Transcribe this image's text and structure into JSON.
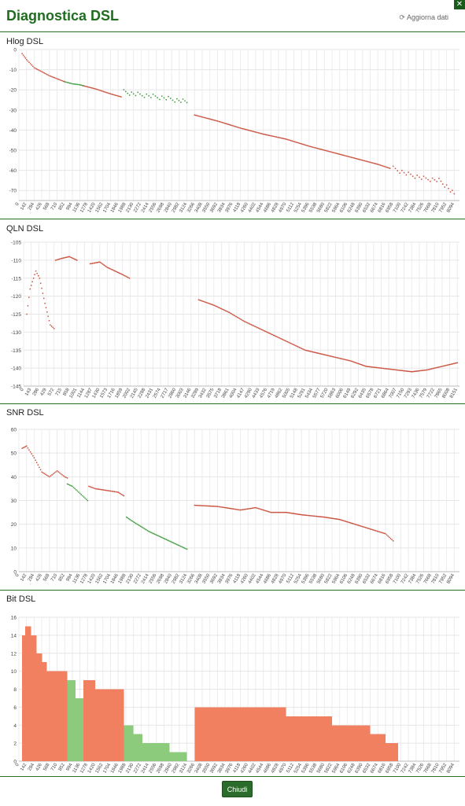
{
  "header": {
    "title": "Diagnostica DSL",
    "refresh_label": "Aggiorna dati",
    "refresh_icon": "refresh-icon",
    "close_icon": "close-icon"
  },
  "footer": {
    "close_label": "Chiudi"
  },
  "colors": {
    "accent": "#1f6e1f",
    "red_series": "#c8503c",
    "green_series": "#3a9a3a",
    "bit_red": "#f08060",
    "bit_green": "#8cca7c"
  },
  "chart_data": [
    {
      "type": "scatter",
      "title": "Hlog DSL",
      "ylim": [
        -75,
        0
      ],
      "yticks": [
        0,
        -10,
        -20,
        -30,
        -40,
        -50,
        -60,
        -70
      ],
      "xlim": [
        0,
        8192
      ],
      "xticks": [
        0,
        142,
        284,
        426,
        568,
        710,
        852,
        994,
        1136,
        1278,
        1420,
        1562,
        1704,
        1846,
        1988,
        2130,
        2272,
        2414,
        2556,
        2698,
        2840,
        2982,
        3124,
        3266,
        3408,
        3550,
        3692,
        3834,
        3976,
        4118,
        4260,
        4402,
        4544,
        4686,
        4828,
        4970,
        5112,
        5254,
        5396,
        5538,
        5680,
        5822,
        5964,
        6106,
        6248,
        6390,
        6532,
        6674,
        6816,
        6958,
        7100,
        7242,
        7384,
        7526,
        7668,
        7810,
        7952,
        8094
      ],
      "series": [
        {
          "color": "red",
          "points": [
            [
              60,
              -2
            ],
            [
              142,
              -5
            ],
            [
              284,
              -9
            ],
            [
              426,
              -11
            ],
            [
              568,
              -13
            ],
            [
              710,
              -14.5
            ],
            [
              852,
              -16
            ]
          ]
        },
        {
          "color": "green",
          "points": [
            [
              852,
              -16
            ],
            [
              994,
              -17
            ],
            [
              1136,
              -17.5
            ],
            [
              1200,
              -18
            ]
          ]
        },
        {
          "color": "red",
          "points": [
            [
              1200,
              -18
            ],
            [
              1420,
              -19.5
            ],
            [
              1704,
              -22
            ],
            [
              1900,
              -23.5
            ]
          ]
        },
        {
          "color": "green",
          "points": [
            [
              1950,
              -21
            ],
            [
              2130,
              -22
            ],
            [
              2414,
              -23
            ],
            [
              2698,
              -24
            ],
            [
              2900,
              -25
            ],
            [
              3124,
              -26
            ]
          ],
          "scatter": true
        },
        {
          "color": "red",
          "points": [
            [
              3266,
              -32.5
            ],
            [
              3692,
              -35.5
            ],
            [
              4118,
              -39
            ],
            [
              4544,
              -42
            ],
            [
              4970,
              -44.5
            ],
            [
              5396,
              -48
            ],
            [
              5822,
              -51
            ],
            [
              6248,
              -54
            ],
            [
              6674,
              -57
            ],
            [
              6900,
              -59
            ]
          ]
        },
        {
          "color": "red",
          "points": [
            [
              6958,
              -59
            ],
            [
              7242,
              -62
            ],
            [
              7526,
              -64
            ],
            [
              7810,
              -65
            ],
            [
              7952,
              -68
            ],
            [
              8094,
              -72
            ]
          ],
          "scatter": true
        }
      ]
    },
    {
      "type": "scatter",
      "title": "QLN DSL",
      "ylim": [
        -145,
        -105
      ],
      "yticks": [
        -105,
        -110,
        -115,
        -120,
        -125,
        -130,
        -135,
        -140,
        -145
      ],
      "xlim": [
        0,
        8192
      ],
      "xticks": [
        0,
        143,
        286,
        429,
        572,
        715,
        858,
        1001,
        1144,
        1287,
        1430,
        1573,
        1716,
        1859,
        2002,
        2145,
        2288,
        2431,
        2574,
        2717,
        2860,
        3003,
        3146,
        3289,
        3432,
        3575,
        3718,
        3861,
        4004,
        4147,
        4290,
        4433,
        4576,
        4719,
        4862,
        5005,
        5148,
        5291,
        5434,
        5577,
        5720,
        5863,
        6006,
        6149,
        6292,
        6435,
        6578,
        6721,
        6864,
        7007,
        7150,
        7293,
        7436,
        7579,
        7722,
        7865,
        8008,
        8151
      ],
      "series": [
        {
          "color": "red",
          "points": [
            [
              60,
              -125
            ],
            [
              120,
              -118
            ],
            [
              230,
              -113
            ],
            [
              300,
              -115
            ],
            [
              400,
              -122
            ],
            [
              500,
              -128
            ],
            [
              572,
              -129
            ]
          ]
        },
        {
          "color": "red",
          "points": [
            [
              600,
              -110
            ],
            [
              715,
              -109.5
            ],
            [
              858,
              -109
            ],
            [
              1001,
              -110
            ]
          ]
        },
        {
          "color": "red",
          "points": [
            [
              1250,
              -111
            ],
            [
              1430,
              -110.5
            ],
            [
              1573,
              -112
            ],
            [
              1716,
              -113
            ],
            [
              1859,
              -114
            ],
            [
              1988,
              -115
            ]
          ]
        },
        {
          "color": "red",
          "points": [
            [
              3289,
              -121
            ],
            [
              3575,
              -122.5
            ],
            [
              3861,
              -124.5
            ],
            [
              4147,
              -127
            ],
            [
              4433,
              -129
            ],
            [
              4719,
              -131
            ],
            [
              5005,
              -133
            ],
            [
              5291,
              -135
            ],
            [
              5577,
              -136
            ],
            [
              5863,
              -137
            ],
            [
              6149,
              -138
            ],
            [
              6435,
              -139.5
            ],
            [
              6721,
              -140
            ],
            [
              7007,
              -140.5
            ],
            [
              7293,
              -141
            ],
            [
              7579,
              -140.5
            ],
            [
              7865,
              -139.5
            ],
            [
              8151,
              -138.5
            ]
          ]
        }
      ]
    },
    {
      "type": "scatter",
      "title": "SNR DSL",
      "ylim": [
        0,
        60
      ],
      "yticks": [
        60,
        50,
        40,
        30,
        20,
        10,
        0
      ],
      "xlim": [
        0,
        8192
      ],
      "xticks": [
        0,
        142,
        284,
        426,
        568,
        710,
        852,
        994,
        1136,
        1278,
        1420,
        1562,
        1704,
        1846,
        1988,
        2130,
        2272,
        2414,
        2556,
        2698,
        2840,
        2982,
        3124,
        3266,
        3408,
        3550,
        3692,
        3834,
        3976,
        4118,
        4260,
        4402,
        4544,
        4686,
        4828,
        4970,
        5112,
        5254,
        5396,
        5538,
        5680,
        5822,
        5964,
        6106,
        6248,
        6390,
        6532,
        6674,
        6816,
        6958,
        7100,
        7242,
        7384,
        7526,
        7668,
        7810,
        7952,
        8094
      ],
      "series": [
        {
          "color": "red",
          "points": [
            [
              60,
              52
            ],
            [
              142,
              53
            ],
            [
              284,
              48
            ],
            [
              426,
              42
            ],
            [
              568,
              40
            ],
            [
              710,
              42.5
            ],
            [
              852,
              40
            ],
            [
              900,
              39.5
            ]
          ]
        },
        {
          "color": "green",
          "points": [
            [
              900,
              37
            ],
            [
              994,
              36
            ],
            [
              1136,
              33
            ],
            [
              1278,
              30
            ]
          ]
        },
        {
          "color": "red",
          "points": [
            [
              1300,
              36
            ],
            [
              1420,
              35
            ],
            [
              1704,
              34
            ],
            [
              1846,
              33.5
            ],
            [
              1950,
              32
            ]
          ]
        },
        {
          "color": "green",
          "points": [
            [
              2000,
              23
            ],
            [
              2130,
              21
            ],
            [
              2414,
              17
            ],
            [
              2698,
              14
            ],
            [
              2982,
              11
            ],
            [
              3124,
              9.5
            ]
          ]
        },
        {
          "color": "red",
          "points": [
            [
              3266,
              28
            ],
            [
              3692,
              27.5
            ],
            [
              4118,
              26
            ],
            [
              4402,
              27
            ],
            [
              4686,
              25
            ],
            [
              4970,
              25
            ],
            [
              5254,
              24
            ],
            [
              5680,
              23
            ],
            [
              5964,
              22
            ],
            [
              6248,
              20
            ],
            [
              6532,
              18
            ],
            [
              6816,
              16
            ],
            [
              6958,
              13
            ]
          ]
        }
      ]
    },
    {
      "type": "bar",
      "title": "Bit DSL",
      "ylim": [
        0,
        16
      ],
      "yticks": [
        16,
        14,
        12,
        10,
        8,
        6,
        4,
        2,
        0
      ],
      "xlim": [
        0,
        8192
      ],
      "xticks": [
        0,
        142,
        284,
        426,
        568,
        710,
        852,
        994,
        1136,
        1278,
        1420,
        1562,
        1704,
        1846,
        1988,
        2130,
        2272,
        2414,
        2556,
        2698,
        2840,
        2982,
        3124,
        3266,
        3408,
        3550,
        3692,
        3834,
        3976,
        4118,
        4260,
        4402,
        4544,
        4686,
        4828,
        4970,
        5112,
        5254,
        5396,
        5538,
        5680,
        5822,
        5964,
        6106,
        6248,
        6390,
        6532,
        6674,
        6816,
        6958,
        7100,
        7242,
        7384,
        7526,
        7668,
        7810,
        7952,
        8094
      ],
      "segments": [
        {
          "from": 60,
          "to": 120,
          "value": 14,
          "color": "red"
        },
        {
          "from": 120,
          "to": 230,
          "value": 15,
          "color": "red"
        },
        {
          "from": 230,
          "to": 330,
          "value": 14,
          "color": "red"
        },
        {
          "from": 330,
          "to": 430,
          "value": 12,
          "color": "red"
        },
        {
          "from": 430,
          "to": 520,
          "value": 11,
          "color": "red"
        },
        {
          "from": 520,
          "to": 900,
          "value": 10,
          "color": "red"
        },
        {
          "from": 900,
          "to": 1050,
          "value": 9,
          "color": "green"
        },
        {
          "from": 1050,
          "to": 1200,
          "value": 7,
          "color": "green"
        },
        {
          "from": 1200,
          "to": 1420,
          "value": 9,
          "color": "red"
        },
        {
          "from": 1420,
          "to": 1950,
          "value": 8,
          "color": "red"
        },
        {
          "from": 1950,
          "to": 2130,
          "value": 4,
          "color": "green"
        },
        {
          "from": 2130,
          "to": 2300,
          "value": 3,
          "color": "green"
        },
        {
          "from": 2300,
          "to": 2800,
          "value": 2,
          "color": "green"
        },
        {
          "from": 2800,
          "to": 3124,
          "value": 1,
          "color": "green"
        },
        {
          "from": 3266,
          "to": 4970,
          "value": 6,
          "color": "red"
        },
        {
          "from": 4970,
          "to": 5822,
          "value": 5,
          "color": "red"
        },
        {
          "from": 5822,
          "to": 6532,
          "value": 4,
          "color": "red"
        },
        {
          "from": 6532,
          "to": 6816,
          "value": 3,
          "color": "red"
        },
        {
          "from": 6816,
          "to": 7050,
          "value": 2,
          "color": "red"
        }
      ]
    }
  ]
}
